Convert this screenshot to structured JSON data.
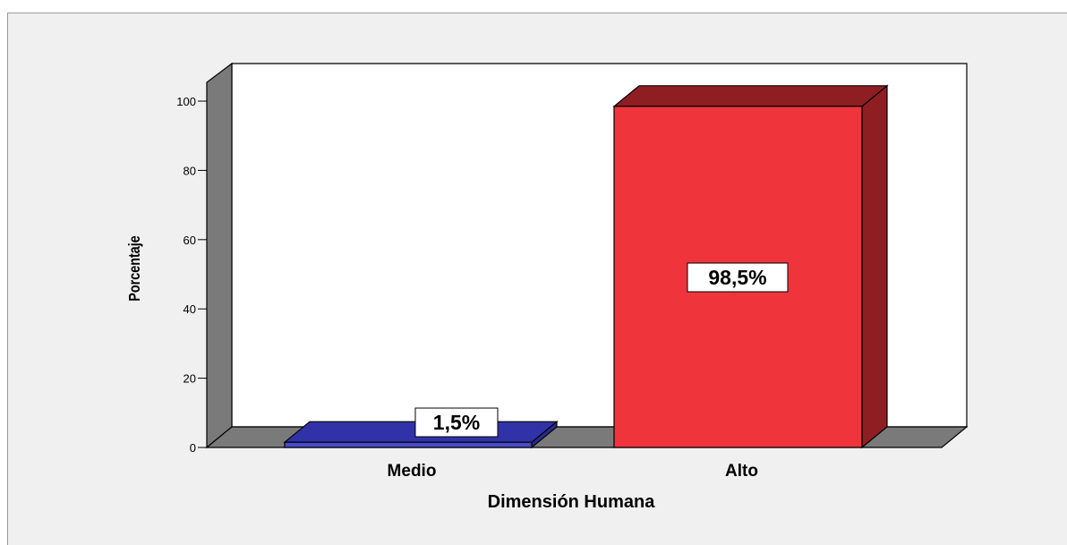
{
  "chart_data": {
    "type": "bar",
    "categories": [
      "Medio",
      "Alto"
    ],
    "values": [
      1.5,
      98.5
    ],
    "data_labels": [
      "1,5%",
      "98,5%"
    ],
    "xlabel": "Dimensión Humana",
    "ylabel": "Porcentaje",
    "ylim": [
      0,
      100
    ],
    "yticks": [
      "0",
      "20",
      "40",
      "60",
      "80",
      "100"
    ],
    "grid": false,
    "three_d": true,
    "colors": {
      "Medio": {
        "front": "#4a4acd",
        "top": "#3232a8",
        "side": "#2a2a90"
      },
      "Alto": {
        "front": "#ef343c",
        "top": "#8e1e22",
        "side": "#8e1e22"
      },
      "back_wall": "#ffffff",
      "side_wall": "#7a7a7a",
      "floor": "#7a7a7a",
      "background": "#f0f0f0"
    }
  }
}
